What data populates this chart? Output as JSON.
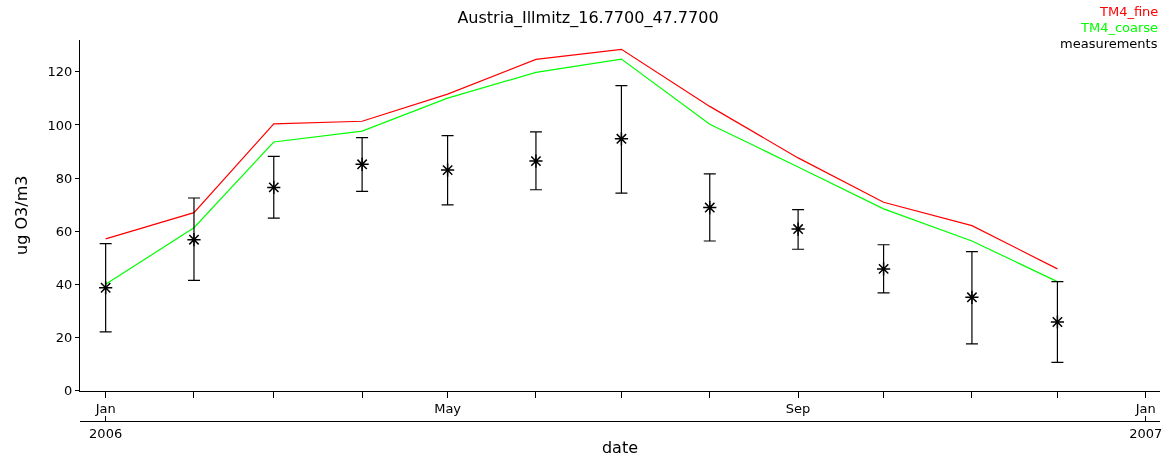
{
  "chart_data": {
    "type": "line",
    "title": "Austria_Illmitz_16.7700_47.7700",
    "xlabel": "date",
    "ylabel": "ug O3/m3",
    "x": [
      "2006-01-01",
      "2006-02-01",
      "2006-03-01",
      "2006-04-01",
      "2006-05-01",
      "2006-06-01",
      "2006-07-01",
      "2006-08-01",
      "2006-09-01",
      "2006-10-01",
      "2006-11-01",
      "2006-12-01"
    ],
    "series": [
      {
        "name": "TM4_fine",
        "color": "#ff0000",
        "marker": "none",
        "values": [
          57.1,
          67.0,
          100.4,
          101.4,
          111.6,
          124.7,
          128.5,
          107.0,
          87.6,
          70.9,
          62.1,
          45.8
        ]
      },
      {
        "name": "TM4_coarse",
        "color": "#00ff00",
        "marker": "none",
        "values": [
          40.0,
          61.3,
          93.6,
          97.7,
          110.1,
          119.8,
          124.8,
          100.3,
          84.2,
          68.4,
          56.3,
          41.0
        ]
      },
      {
        "name": "measurements",
        "type": "scatter",
        "color": "#000000",
        "marker": "cross",
        "values": [
          38.7,
          56.8,
          76.5,
          85.2,
          83.0,
          86.4,
          94.8,
          68.9,
          60.8,
          45.8,
          35.1,
          25.8
        ],
        "errors": [
          [
            22.1,
            55.3
          ],
          [
            41.5,
            72.5
          ],
          [
            64.9,
            88.2
          ],
          [
            75.0,
            95.2
          ],
          [
            69.9,
            96.0
          ],
          [
            75.6,
            97.4
          ],
          [
            74.3,
            114.8
          ],
          [
            56.3,
            81.6
          ],
          [
            53.2,
            68.1
          ],
          [
            36.8,
            54.9
          ],
          [
            17.6,
            52.3
          ],
          [
            10.6,
            41.0
          ]
        ]
      }
    ],
    "ylim": [
      0,
      132
    ],
    "yticks": [
      0,
      20,
      40,
      60,
      80,
      100,
      120
    ],
    "xlim": [
      "2005-12-23",
      "2007-01-06"
    ],
    "xticks": [
      {
        "value": "2006-01-01",
        "label": "Jan"
      },
      {
        "value": "2006-02-01",
        "label": null
      },
      {
        "value": "2006-03-01",
        "label": null
      },
      {
        "value": "2006-04-01",
        "label": null
      },
      {
        "value": "2006-05-01",
        "label": "May"
      },
      {
        "value": "2006-06-01",
        "label": null
      },
      {
        "value": "2006-07-01",
        "label": null
      },
      {
        "value": "2006-08-01",
        "label": null
      },
      {
        "value": "2006-09-01",
        "label": "Sep"
      },
      {
        "value": "2006-10-01",
        "label": null
      },
      {
        "value": "2006-11-01",
        "label": null
      },
      {
        "value": "2006-12-01",
        "label": null
      },
      {
        "value": "2007-01-01",
        "label": "Jan"
      }
    ],
    "x2lim": [
      "2005-12-23",
      "2007-01-06"
    ],
    "x2ticks": [
      {
        "value": "2006-01-01",
        "label": "2006"
      },
      {
        "value": "2007-01-01",
        "label": "2007"
      }
    ],
    "legend": "top right"
  }
}
